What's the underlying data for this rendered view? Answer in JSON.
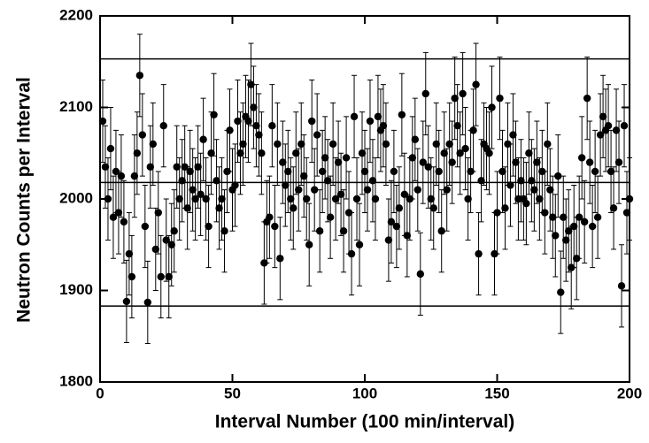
{
  "chart_data": {
    "type": "scatter",
    "xlabel": "Interval Number (100 min/interval)",
    "ylabel": "Neutron Counts per Interval",
    "color": "#000000",
    "x": [
      1,
      2,
      3,
      4,
      5,
      6,
      7,
      8,
      9,
      10,
      11,
      12,
      13,
      14,
      15,
      16,
      17,
      18,
      19,
      20,
      21,
      22,
      23,
      24,
      25,
      26,
      27,
      28,
      29,
      30,
      31,
      32,
      33,
      34,
      35,
      36,
      37,
      38,
      39,
      40,
      41,
      42,
      43,
      44,
      45,
      46,
      47,
      48,
      49,
      50,
      51,
      52,
      53,
      54,
      55,
      56,
      57,
      58,
      59,
      60,
      61,
      62,
      63,
      64,
      65,
      66,
      67,
      68,
      69,
      70,
      71,
      72,
      73,
      74,
      75,
      76,
      77,
      78,
      79,
      80,
      81,
      82,
      83,
      84,
      85,
      86,
      87,
      88,
      89,
      90,
      91,
      92,
      93,
      94,
      95,
      96,
      97,
      98,
      99,
      100,
      101,
      102,
      103,
      104,
      105,
      106,
      107,
      108,
      109,
      110,
      111,
      112,
      113,
      114,
      115,
      116,
      117,
      118,
      119,
      120,
      121,
      122,
      123,
      124,
      125,
      126,
      127,
      128,
      129,
      130,
      131,
      132,
      133,
      134,
      135,
      136,
      137,
      138,
      139,
      140,
      141,
      142,
      143,
      144,
      145,
      146,
      147,
      148,
      149,
      150,
      151,
      152,
      153,
      154,
      155,
      156,
      157,
      158,
      159,
      160,
      161,
      162,
      163,
      164,
      165,
      166,
      167,
      168,
      169,
      170,
      171,
      172,
      173,
      174,
      175,
      176,
      177,
      178,
      179,
      180,
      181,
      182,
      183,
      184,
      185,
      186,
      187,
      188,
      189,
      190,
      191,
      192,
      193,
      194,
      195,
      196,
      197,
      198,
      199,
      200
    ],
    "values": [
      2085,
      2035,
      2000,
      2055,
      1980,
      2030,
      1985,
      2025,
      1975,
      1888,
      1940,
      1915,
      2025,
      2050,
      2135,
      2070,
      1970,
      1887,
      2035,
      2060,
      1945,
      1985,
      1915,
      2080,
      1955,
      1915,
      1950,
      1965,
      2035,
      2000,
      2020,
      2035,
      1990,
      2030,
      2010,
      2000,
      2035,
      2005,
      2065,
      2000,
      1970,
      2050,
      2092,
      2020,
      1990,
      2000,
      1965,
      2030,
      2075,
      2010,
      2015,
      2085,
      2050,
      2060,
      2090,
      2085,
      2125,
      2100,
      2080,
      2070,
      2050,
      1930,
      1975,
      1980,
      2080,
      1970,
      2060,
      1935,
      2040,
      2015,
      2030,
      2000,
      1990,
      2050,
      2010,
      2060,
      2025,
      2000,
      1950,
      2085,
      2010,
      2070,
      1965,
      2030,
      2045,
      2020,
      1980,
      2060,
      2000,
      2040,
      2005,
      1965,
      2045,
      1985,
      1940,
      2090,
      2000,
      1950,
      2050,
      2030,
      2010,
      2085,
      2020,
      2000,
      2090,
      2075,
      2080,
      2060,
      1955,
      1975,
      2030,
      1970,
      1990,
      2092,
      2005,
      1960,
      2000,
      2045,
      2065,
      2010,
      1918,
      2040,
      2115,
      2035,
      2000,
      1990,
      2060,
      2030,
      1965,
      2050,
      2010,
      2060,
      2040,
      2110,
      2080,
      2050,
      2115,
      2055,
      2000,
      2030,
      2075,
      2125,
      1940,
      2020,
      2060,
      2055,
      2050,
      2100,
      1940,
      1985,
      2110,
      2030,
      1990,
      2060,
      2015,
      2070,
      2040,
      2000,
      2020,
      2000,
      1995,
      2050,
      2020,
      2010,
      2040,
      2000,
      2030,
      1985,
      2060,
      2010,
      1980,
      1960,
      2025,
      1898,
      1980,
      1955,
      1965,
      1925,
      1970,
      1935,
      1980,
      2045,
      1975,
      2110,
      2040,
      1970,
      2030,
      1980,
      2070,
      2090,
      2075,
      2080,
      2030,
      1990,
      2075,
      2040,
      1905,
      2080,
      1985,
      2000
    ],
    "errors": [
      45,
      45,
      45,
      45,
      45,
      45,
      45,
      45,
      45,
      45,
      45,
      45,
      45,
      45,
      45,
      45,
      45,
      45,
      45,
      45,
      45,
      45,
      45,
      45,
      45,
      45,
      45,
      45,
      45,
      45,
      45,
      45,
      45,
      45,
      45,
      45,
      45,
      45,
      45,
      45,
      45,
      45,
      45,
      45,
      45,
      45,
      45,
      45,
      45,
      45,
      45,
      45,
      45,
      45,
      45,
      45,
      45,
      45,
      45,
      45,
      45,
      45,
      45,
      45,
      45,
      45,
      45,
      45,
      45,
      45,
      45,
      45,
      45,
      45,
      45,
      45,
      45,
      45,
      45,
      45,
      45,
      45,
      45,
      45,
      45,
      45,
      45,
      45,
      45,
      45,
      45,
      45,
      45,
      45,
      45,
      45,
      45,
      45,
      45,
      45,
      45,
      45,
      45,
      45,
      45,
      45,
      45,
      45,
      45,
      45,
      45,
      45,
      45,
      45,
      45,
      45,
      45,
      45,
      45,
      45,
      45,
      45,
      45,
      45,
      45,
      45,
      45,
      45,
      45,
      45,
      45,
      45,
      45,
      45,
      45,
      45,
      45,
      45,
      45,
      45,
      45,
      45,
      45,
      45,
      45,
      45,
      45,
      45,
      45,
      45,
      45,
      45,
      45,
      45,
      45,
      45,
      45,
      45,
      45,
      45,
      45,
      45,
      45,
      45,
      45,
      45,
      45,
      45,
      45,
      45,
      45,
      45,
      45,
      45,
      45,
      45,
      45,
      45,
      45,
      45,
      45,
      45,
      45,
      45,
      45,
      45,
      45,
      45,
      45,
      45,
      45,
      45,
      45,
      45,
      45,
      45,
      45,
      45,
      45,
      45
    ],
    "hlines": [
      2153,
      2018,
      1883
    ],
    "xlim": [
      0,
      200
    ],
    "xticks": [
      0,
      50,
      100,
      150,
      200
    ],
    "ylim": [
      1800,
      2200
    ],
    "yticks": [
      1800,
      1900,
      2000,
      2100,
      2200
    ]
  }
}
